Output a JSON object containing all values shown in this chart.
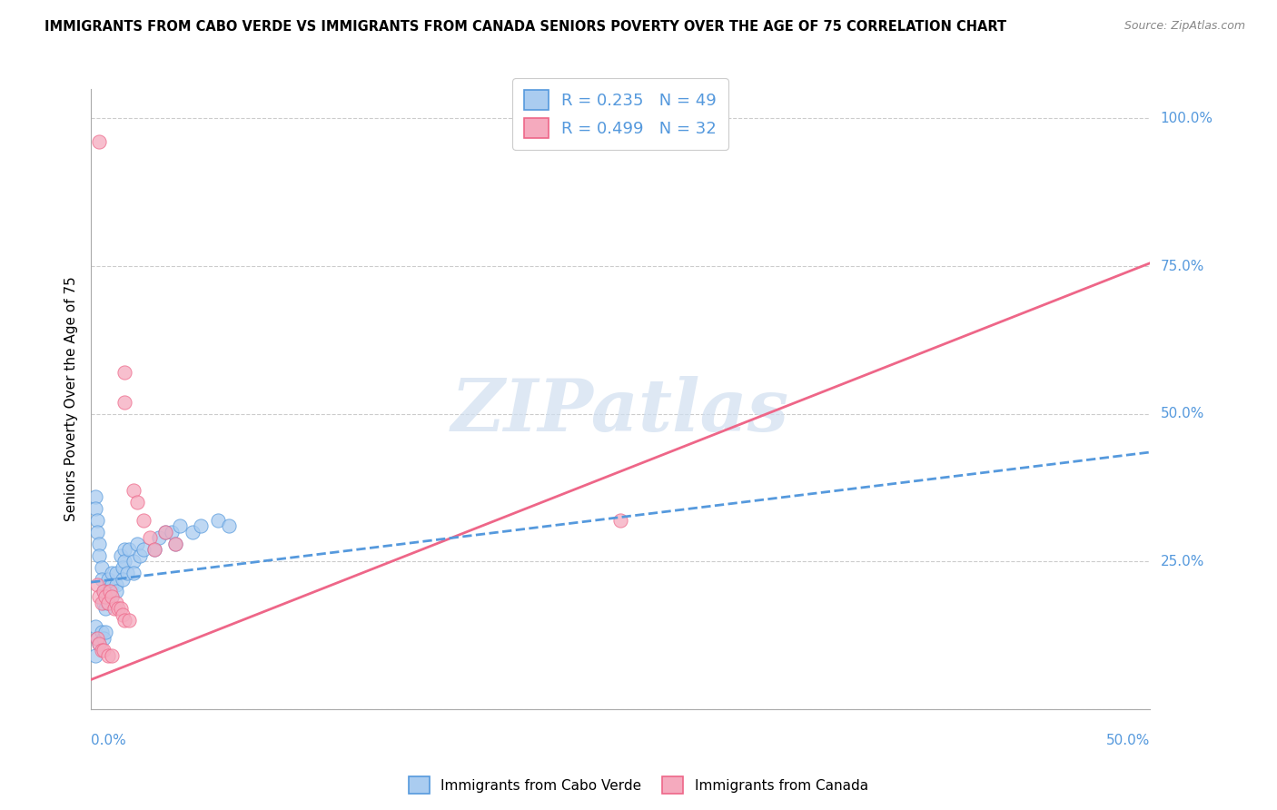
{
  "title": "IMMIGRANTS FROM CABO VERDE VS IMMIGRANTS FROM CANADA SENIORS POVERTY OVER THE AGE OF 75 CORRELATION CHART",
  "source": "Source: ZipAtlas.com",
  "ylabel": "Seniors Poverty Over the Age of 75",
  "cabo_verde_R": 0.235,
  "cabo_verde_N": 49,
  "canada_R": 0.499,
  "canada_N": 32,
  "cabo_verde_color": "#aaccf0",
  "canada_color": "#f5aabe",
  "cabo_verde_line_color": "#5599dd",
  "canada_line_color": "#ee6688",
  "cabo_verde_scatter": [
    [
      0.002,
      0.36
    ],
    [
      0.002,
      0.34
    ],
    [
      0.003,
      0.32
    ],
    [
      0.003,
      0.3
    ],
    [
      0.004,
      0.28
    ],
    [
      0.004,
      0.26
    ],
    [
      0.005,
      0.24
    ],
    [
      0.005,
      0.22
    ],
    [
      0.006,
      0.2
    ],
    [
      0.006,
      0.18
    ],
    [
      0.007,
      0.17
    ],
    [
      0.008,
      0.22
    ],
    [
      0.008,
      0.2
    ],
    [
      0.008,
      0.18
    ],
    [
      0.01,
      0.23
    ],
    [
      0.01,
      0.21
    ],
    [
      0.01,
      0.19
    ],
    [
      0.012,
      0.23
    ],
    [
      0.012,
      0.21
    ],
    [
      0.012,
      0.2
    ],
    [
      0.014,
      0.26
    ],
    [
      0.015,
      0.24
    ],
    [
      0.015,
      0.22
    ],
    [
      0.016,
      0.27
    ],
    [
      0.016,
      0.25
    ],
    [
      0.017,
      0.23
    ],
    [
      0.018,
      0.27
    ],
    [
      0.02,
      0.25
    ],
    [
      0.02,
      0.23
    ],
    [
      0.022,
      0.28
    ],
    [
      0.023,
      0.26
    ],
    [
      0.025,
      0.27
    ],
    [
      0.03,
      0.27
    ],
    [
      0.032,
      0.29
    ],
    [
      0.035,
      0.3
    ],
    [
      0.038,
      0.3
    ],
    [
      0.04,
      0.28
    ],
    [
      0.042,
      0.31
    ],
    [
      0.048,
      0.3
    ],
    [
      0.052,
      0.31
    ],
    [
      0.06,
      0.32
    ],
    [
      0.065,
      0.31
    ],
    [
      0.002,
      0.14
    ],
    [
      0.003,
      0.12
    ],
    [
      0.004,
      0.11
    ],
    [
      0.005,
      0.13
    ],
    [
      0.006,
      0.12
    ],
    [
      0.007,
      0.13
    ],
    [
      0.002,
      0.09
    ]
  ],
  "canada_scatter": [
    [
      0.004,
      0.96
    ],
    [
      0.016,
      0.57
    ],
    [
      0.016,
      0.52
    ],
    [
      0.02,
      0.37
    ],
    [
      0.022,
      0.35
    ],
    [
      0.025,
      0.32
    ],
    [
      0.028,
      0.29
    ],
    [
      0.03,
      0.27
    ],
    [
      0.035,
      0.3
    ],
    [
      0.04,
      0.28
    ],
    [
      0.003,
      0.21
    ],
    [
      0.004,
      0.19
    ],
    [
      0.005,
      0.18
    ],
    [
      0.006,
      0.2
    ],
    [
      0.007,
      0.19
    ],
    [
      0.008,
      0.18
    ],
    [
      0.009,
      0.2
    ],
    [
      0.01,
      0.19
    ],
    [
      0.011,
      0.17
    ],
    [
      0.012,
      0.18
    ],
    [
      0.013,
      0.17
    ],
    [
      0.014,
      0.17
    ],
    [
      0.015,
      0.16
    ],
    [
      0.016,
      0.15
    ],
    [
      0.018,
      0.15
    ],
    [
      0.003,
      0.12
    ],
    [
      0.004,
      0.11
    ],
    [
      0.005,
      0.1
    ],
    [
      0.006,
      0.1
    ],
    [
      0.008,
      0.09
    ],
    [
      0.01,
      0.09
    ],
    [
      0.25,
      0.32
    ]
  ],
  "x_min": 0.0,
  "x_max": 0.5,
  "y_min": 0.0,
  "y_max": 1.05,
  "cabo_line_x_end": 0.5,
  "canada_line_x_end": 0.5
}
